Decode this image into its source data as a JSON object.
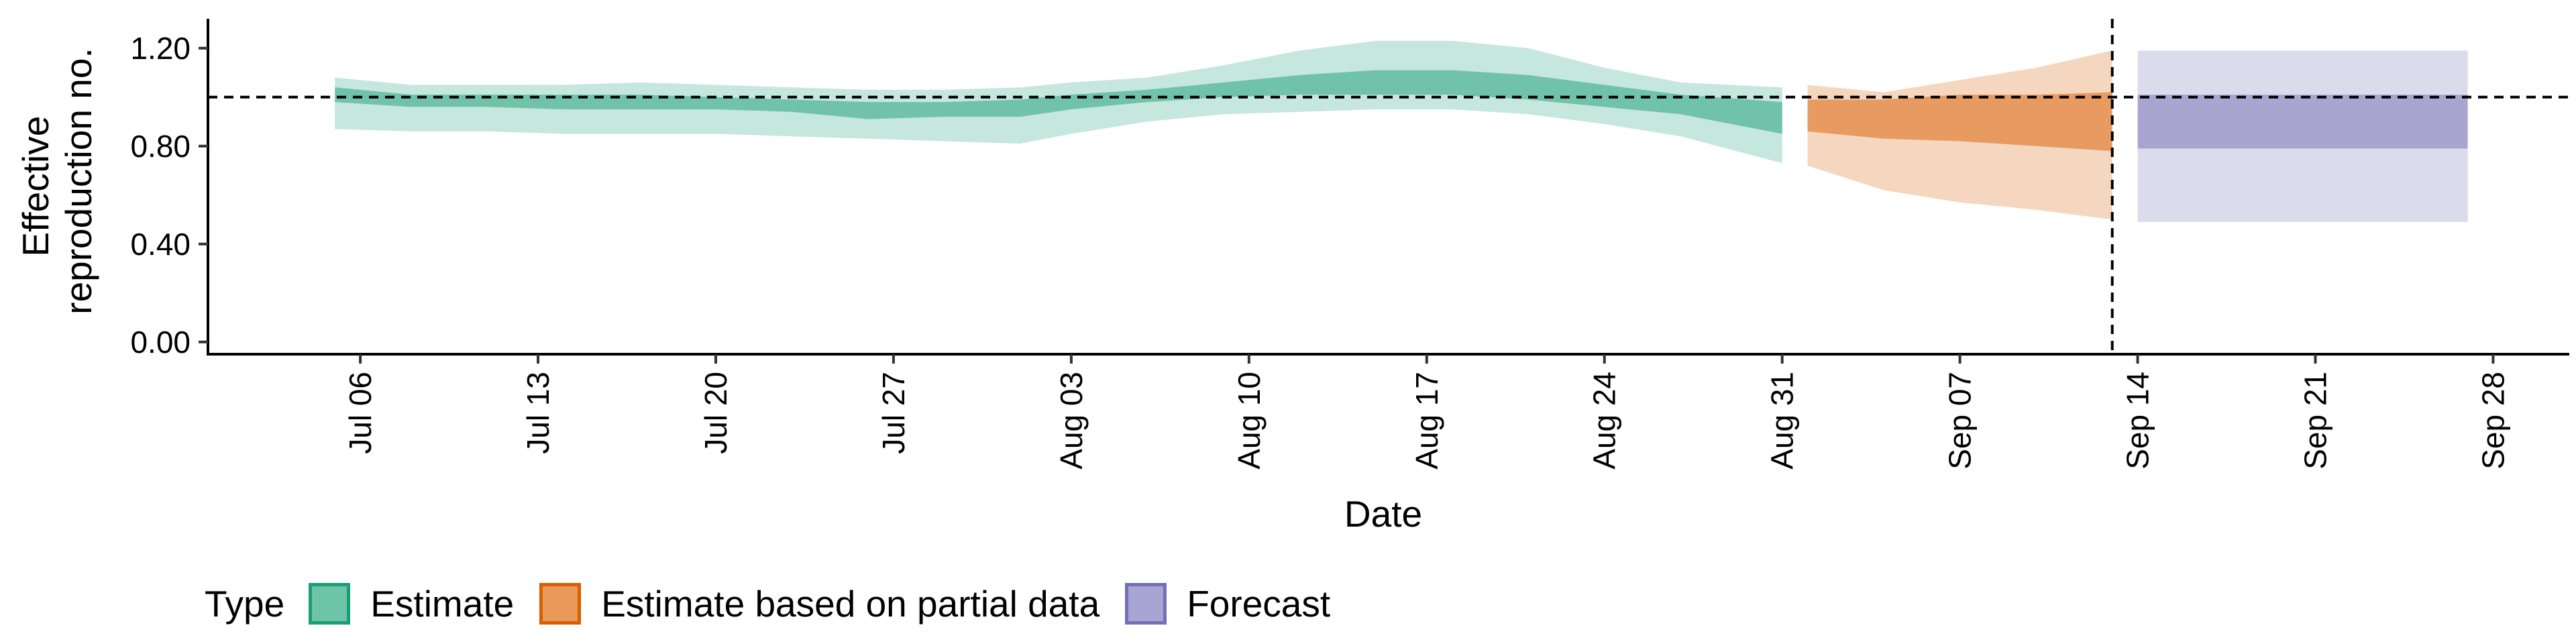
{
  "chart_data": {
    "type": "area",
    "xlabel": "Date",
    "ylabel_lines": [
      "Effective",
      "reproduction no."
    ],
    "x_tick_labels": [
      "Jul 06",
      "Jul 13",
      "Jul 20",
      "Jul 27",
      "Aug 03",
      "Aug 10",
      "Aug 17",
      "Aug 24",
      "Aug 31",
      "Sep 07",
      "Sep 14",
      "Sep 21",
      "Sep 28"
    ],
    "y_tick_labels": [
      "0.00",
      "0.40",
      "0.80",
      "1.20"
    ],
    "ylim": [
      -0.05,
      1.32
    ],
    "xlim": [
      "2020-06-30",
      "2020-10-01"
    ],
    "x_ticks": [
      "2020-07-06",
      "2020-07-13",
      "2020-07-20",
      "2020-07-27",
      "2020-08-03",
      "2020-08-10",
      "2020-08-17",
      "2020-08-24",
      "2020-08-31",
      "2020-09-07",
      "2020-09-14",
      "2020-09-21",
      "2020-09-28"
    ],
    "y_ticks": [
      0,
      0.4,
      0.8,
      1.2
    ],
    "reference_hline": 1.0,
    "reference_vline": "2020-09-13",
    "grid": false,
    "legend_position": "bottom-left",
    "series": [
      {
        "name": "Estimate",
        "color": "#1b9e77",
        "x": [
          "2020-07-05",
          "2020-07-08",
          "2020-07-11",
          "2020-07-14",
          "2020-07-17",
          "2020-07-20",
          "2020-07-23",
          "2020-07-26",
          "2020-07-29",
          "2020-08-01",
          "2020-08-03",
          "2020-08-06",
          "2020-08-09",
          "2020-08-12",
          "2020-08-15",
          "2020-08-18",
          "2020-08-21",
          "2020-08-24",
          "2020-08-27",
          "2020-08-31"
        ],
        "lower_90": [
          0.87,
          0.86,
          0.86,
          0.85,
          0.85,
          0.85,
          0.84,
          0.83,
          0.82,
          0.81,
          0.85,
          0.9,
          0.93,
          0.94,
          0.95,
          0.95,
          0.93,
          0.89,
          0.84,
          0.73
        ],
        "upper_90": [
          1.08,
          1.05,
          1.05,
          1.05,
          1.06,
          1.05,
          1.04,
          1.03,
          1.03,
          1.04,
          1.06,
          1.08,
          1.13,
          1.19,
          1.23,
          1.23,
          1.2,
          1.12,
          1.06,
          1.04
        ],
        "lower_50": [
          0.98,
          0.96,
          0.96,
          0.95,
          0.95,
          0.95,
          0.94,
          0.91,
          0.92,
          0.92,
          0.95,
          0.98,
          1.0,
          1.01,
          1.01,
          1.01,
          0.99,
          0.96,
          0.93,
          0.85
        ],
        "upper_50": [
          1.04,
          1.01,
          1.01,
          1.01,
          1.01,
          1.0,
          0.99,
          0.98,
          0.98,
          0.99,
          1.01,
          1.03,
          1.06,
          1.09,
          1.11,
          1.11,
          1.09,
          1.05,
          1.01,
          0.98
        ]
      },
      {
        "name": "Estimate based on partial data",
        "color": "#d95f02",
        "x": [
          "2020-09-01",
          "2020-09-04",
          "2020-09-07",
          "2020-09-10",
          "2020-09-13"
        ],
        "lower_90": [
          0.72,
          0.62,
          0.57,
          0.54,
          0.5
        ],
        "upper_90": [
          1.05,
          1.02,
          1.07,
          1.12,
          1.19
        ],
        "lower_50": [
          0.86,
          0.83,
          0.82,
          0.8,
          0.78
        ],
        "upper_50": [
          0.99,
          0.99,
          1.01,
          1.01,
          1.02
        ]
      },
      {
        "name": "Forecast",
        "color": "#7570b3",
        "x": [
          "2020-09-14",
          "2020-09-27"
        ],
        "lower_90": [
          0.49,
          0.49
        ],
        "upper_90": [
          1.19,
          1.19
        ],
        "lower_50": [
          0.79,
          0.79
        ],
        "upper_50": [
          1.01,
          1.01
        ]
      }
    ]
  },
  "legend": {
    "title": "Type",
    "items": [
      {
        "label": "Estimate",
        "fill": "#6dc4a7",
        "border": "#1b9e77"
      },
      {
        "label": "Estimate based on partial data",
        "fill": "#e9995a",
        "border": "#d95f02"
      },
      {
        "label": "Forecast",
        "fill": "#a9a5d2",
        "border": "#7570b3"
      }
    ]
  }
}
